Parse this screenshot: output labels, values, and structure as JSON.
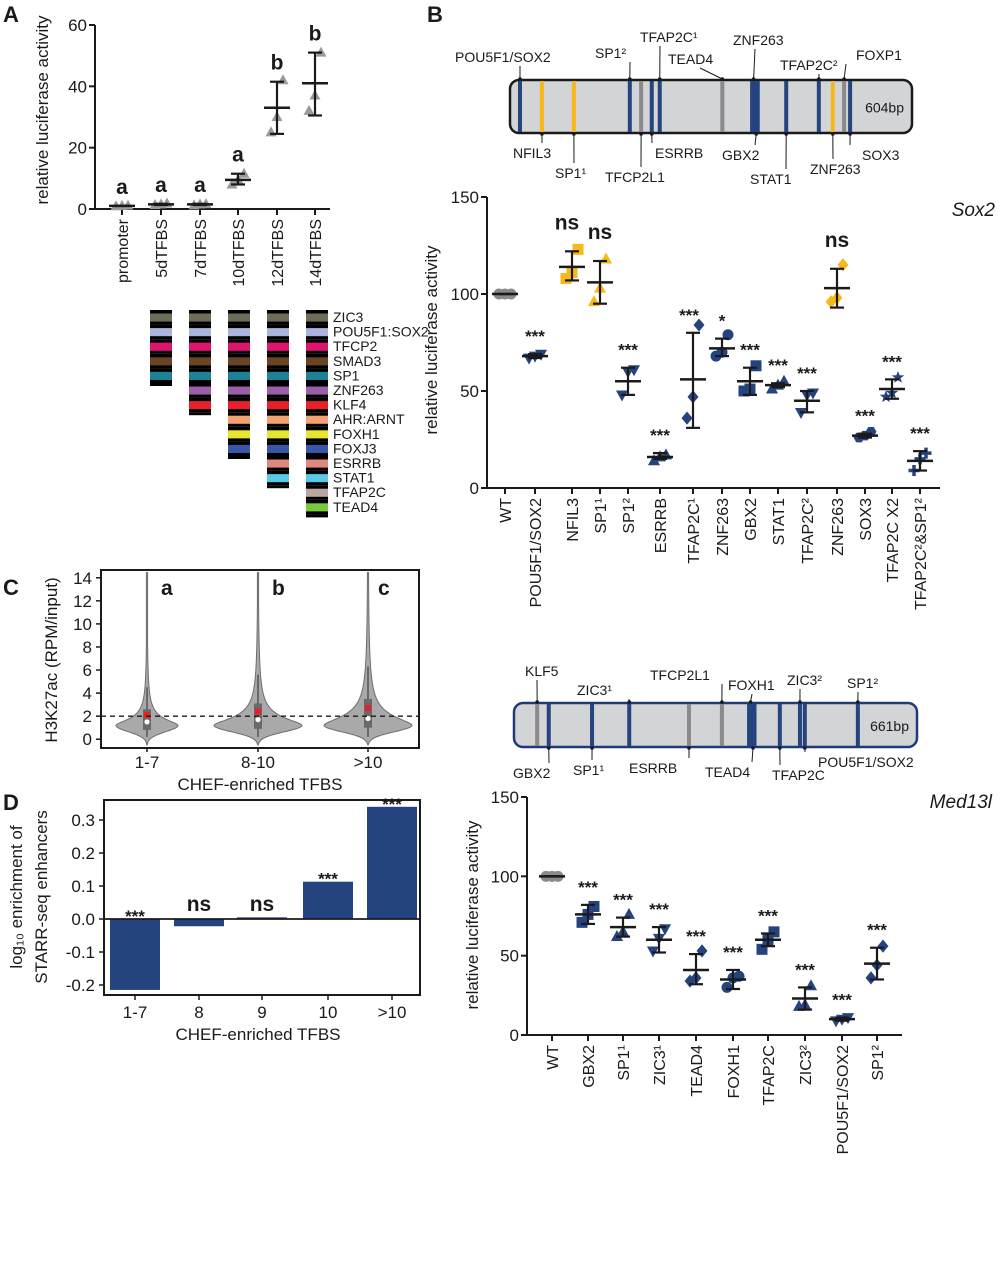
{
  "panel_labels": {
    "a": "A",
    "b": "B",
    "c": "C",
    "d": "D"
  },
  "colors": {
    "navy": "#25447f",
    "gold": "#f7b81b",
    "gray": "#8a8a8a",
    "dark": "#1a1a1a",
    "red": "#e8202a",
    "violin": "#a9a9a9"
  },
  "diagrams": {
    "sox2_map": {
      "length_label": "604bp",
      "sites": [
        {
          "label": "POU5F1/SOX2",
          "bp": 15,
          "color": "navy",
          "side": "top"
        },
        {
          "label": "NFIL3",
          "bp": 48,
          "color": "gold",
          "side": "bottom"
        },
        {
          "label": "SP1¹",
          "bp": 96,
          "color": "gold",
          "side": "bottom"
        },
        {
          "label": "SP1²",
          "bp": 180,
          "color": "navy",
          "side": "top"
        },
        {
          "label": "TFCP2L1",
          "bp": 197,
          "color": "gray",
          "side": "bottom"
        },
        {
          "label": "ESRRB",
          "bp": 213,
          "color": "navy",
          "side": "bottom"
        },
        {
          "label": "TFAP2C¹",
          "bp": 225,
          "color": "navy",
          "side": "top"
        },
        {
          "label": "TEAD4",
          "bp": 319,
          "color": "gray",
          "side": "top"
        },
        {
          "label": "ZNF263",
          "bp": 366,
          "color": "navy",
          "side": "top"
        },
        {
          "label": "GBX2",
          "bp": 370,
          "color": "navy",
          "side": "bottom"
        },
        {
          "label": "STAT1",
          "bp": 415,
          "color": "navy",
          "side": "bottom"
        },
        {
          "label": "TFAP2C²",
          "bp": 464,
          "color": "navy",
          "side": "top"
        },
        {
          "label": "ZNF263",
          "bp": 485,
          "color": "gold",
          "side": "bottom"
        },
        {
          "label": "FOXP1",
          "bp": 502,
          "color": "gray",
          "side": "top"
        },
        {
          "label": "SOX3",
          "bp": 511,
          "color": "navy",
          "side": "bottom"
        }
      ]
    },
    "med13l_map": {
      "length_label": "661bp",
      "sites": [
        {
          "label": "KLF5",
          "bp": 38,
          "color": "gray",
          "side": "top"
        },
        {
          "label": "GBX2",
          "bp": 57,
          "color": "navy",
          "side": "bottom"
        },
        {
          "label": "SP1¹",
          "bp": 128,
          "color": "navy",
          "side": "bottom"
        },
        {
          "label": "ZIC3¹",
          "bp": 189,
          "color": "navy",
          "side": "top"
        },
        {
          "label": "ESRRB",
          "bp": 287,
          "color": "gray",
          "side": "bottom"
        },
        {
          "label": "TFCP2L1",
          "bp": 341,
          "color": "gray",
          "side": "top"
        },
        {
          "label": "FOXH1",
          "bp": 388,
          "color": "navy",
          "side": "top"
        },
        {
          "label": "TEAD4",
          "bp": 392,
          "color": "navy",
          "side": "bottom"
        },
        {
          "label": "TFAP2C",
          "bp": 436,
          "color": "navy",
          "side": "bottom"
        },
        {
          "label": "ZIC3²",
          "bp": 469,
          "color": "navy",
          "side": "top"
        },
        {
          "label": "POU5F1/SOX2",
          "bp": 477,
          "color": "navy",
          "side": "bottom"
        },
        {
          "label": "SP1²",
          "bp": 564,
          "color": "navy",
          "side": "top"
        }
      ]
    }
  },
  "tfbs_legend": {
    "factors": [
      {
        "label": "ZIC3",
        "color": "#6e6e58"
      },
      {
        "label": "POU5F1:SOX2",
        "color": "#aab4dc"
      },
      {
        "label": "TFCP2",
        "color": "#e0146e"
      },
      {
        "label": "SMAD3",
        "color": "#6b4423"
      },
      {
        "label": "SP1",
        "color": "#1e8296"
      },
      {
        "label": "ZNF263",
        "color": "#9b5ea8"
      },
      {
        "label": "KLF4",
        "color": "#e8202a"
      },
      {
        "label": "AHR:ARNT",
        "color": "#f5a070"
      },
      {
        "label": "FOXH1",
        "color": "#e6e632"
      },
      {
        "label": "FOXJ3",
        "color": "#3a56a8"
      },
      {
        "label": "ESRRB",
        "color": "#e08880"
      },
      {
        "label": "STAT1",
        "color": "#5ac8e8"
      },
      {
        "label": "TFAP2C",
        "color": "#b8a8a0"
      },
      {
        "label": "TEAD4",
        "color": "#78c83c"
      }
    ],
    "counts_per_construct": [
      5,
      7,
      10,
      12,
      14
    ]
  },
  "chart_data": [
    {
      "panel": "A",
      "type": "scatter",
      "ylabel": "relative luciferase activity",
      "ylim": [
        0,
        60
      ],
      "yticks": [
        "0",
        "20",
        "40",
        "60"
      ],
      "categories": [
        "promoter",
        "5dTFBS",
        "7dTFBS",
        "10dTFBS",
        "12dTFBS",
        "14dTFBS"
      ],
      "means": [
        1,
        1.5,
        1.5,
        9.5,
        33,
        41
      ],
      "err_low": [
        1,
        1.3,
        1.3,
        8,
        24.5,
        30.5
      ],
      "err_high": [
        1,
        1.7,
        1.7,
        11.5,
        41.5,
        51
      ],
      "points": [
        [
          0.9,
          1,
          1.1
        ],
        [
          1.3,
          1.5,
          1.8
        ],
        [
          1.2,
          1.5,
          1.6
        ],
        [
          8,
          9.5,
          11.5
        ],
        [
          25,
          30,
          42
        ],
        [
          32,
          37,
          51
        ]
      ],
      "letters": [
        "a",
        "a",
        "a",
        "a",
        "b",
        "b"
      ],
      "marker": "triangle",
      "marker_color": "#9a9a9a"
    },
    {
      "panel": "B-Sox2",
      "type": "scatter",
      "title": "Sox2",
      "ylabel": "relative luciferase activity",
      "ylim": [
        0,
        150
      ],
      "yticks": [
        "0",
        "50",
        "100",
        "150"
      ],
      "categories": [
        "WT",
        "POU5F1/SOX2",
        "NFIL3",
        "SP1¹",
        "SP1²",
        "ESRRB",
        "TFAP2C¹",
        "ZNF263",
        "GBX2",
        "STAT1",
        "TFAP2C²",
        "ZNF263",
        "SOX3",
        "TFAP2C X2",
        "TFAP2C²&SP1²"
      ],
      "means": [
        100,
        68,
        114,
        106,
        55,
        16,
        56,
        72,
        55,
        53,
        45,
        103,
        27,
        51,
        14
      ],
      "err_low": [
        100,
        67,
        107,
        95,
        48,
        15,
        31,
        68,
        48,
        52,
        39,
        93,
        26,
        46,
        9
      ],
      "err_high": [
        100,
        69,
        122,
        117,
        62,
        18,
        80,
        77,
        62,
        54,
        50,
        113,
        28,
        56,
        19
      ],
      "points": [
        [
          100,
          100,
          100
        ],
        [
          67,
          68,
          69
        ],
        [
          108,
          111,
          123
        ],
        [
          96,
          103,
          118
        ],
        [
          48,
          60,
          61
        ],
        [
          14,
          16,
          17
        ],
        [
          36,
          47,
          84
        ],
        [
          68,
          70,
          79
        ],
        [
          50,
          51,
          63
        ],
        [
          51,
          53,
          55
        ],
        [
          39,
          48,
          49
        ],
        [
          96,
          98,
          115
        ],
        [
          26,
          27,
          29
        ],
        [
          47,
          49,
          57
        ],
        [
          9,
          15,
          18
        ]
      ],
      "markers": [
        "circle",
        "tri-down",
        "square",
        "triangle",
        "tri-down",
        "triangle",
        "diamond",
        "circle",
        "square",
        "triangle",
        "tri-down",
        "diamond",
        "hexagon",
        "star",
        "cross"
      ],
      "marker_colors": [
        "gray",
        "navy",
        "gold",
        "gold",
        "navy",
        "navy",
        "navy",
        "navy",
        "navy",
        "navy",
        "navy",
        "gold",
        "navy",
        "navy",
        "navy"
      ],
      "significance": [
        "",
        "***",
        "ns",
        "ns",
        "***",
        "***",
        "***",
        "*",
        "***",
        "***",
        "***",
        "ns",
        "***",
        "***",
        "***"
      ]
    },
    {
      "panel": "B-Med13l",
      "type": "scatter",
      "title": "Med13l",
      "ylabel": "relative luciferase activity",
      "ylim": [
        0,
        150
      ],
      "yticks": [
        "0",
        "50",
        "100",
        "150"
      ],
      "categories": [
        "WT",
        "GBX2",
        "SP1¹",
        "ZIC3¹",
        "TEAD4",
        "FOXH1",
        "TFAP2C",
        "ZIC3²",
        "POU5F1/SOX2",
        "SP1²"
      ],
      "means": [
        100,
        76,
        68,
        60,
        41,
        35,
        60,
        23,
        10,
        45
      ],
      "err_low": [
        100,
        70,
        62,
        52,
        32,
        29,
        56,
        16,
        9,
        35
      ],
      "err_high": [
        100,
        82,
        74,
        68,
        51,
        41,
        64,
        30,
        11,
        55
      ],
      "points": [
        [
          100,
          100,
          100
        ],
        [
          71,
          76,
          81
        ],
        [
          62,
          65,
          76
        ],
        [
          53,
          61,
          67
        ],
        [
          34,
          36,
          53
        ],
        [
          30,
          36,
          37
        ],
        [
          54,
          60,
          65
        ],
        [
          18,
          19,
          31
        ],
        [
          9,
          10,
          11
        ],
        [
          36,
          44,
          56
        ]
      ],
      "markers": [
        "circle",
        "square",
        "triangle",
        "tri-down",
        "diamond",
        "circle",
        "square",
        "triangle",
        "tri-down",
        "diamond"
      ],
      "marker_colors": [
        "gray",
        "navy",
        "navy",
        "navy",
        "navy",
        "navy",
        "navy",
        "navy",
        "navy",
        "navy"
      ],
      "significance": [
        "",
        "***",
        "***",
        "***",
        "***",
        "***",
        "***",
        "***",
        "***",
        "***"
      ]
    },
    {
      "panel": "C",
      "type": "violin",
      "ylabel": "H3K27ac (RPM/input)",
      "xlabel": "CHEF-enriched TFBS",
      "ylim": [
        -0.5,
        14.5
      ],
      "yticks": [
        "0",
        "2",
        "4",
        "6",
        "8",
        "10",
        "12",
        "14"
      ],
      "categories": [
        "1-7",
        "8-10",
        ">10"
      ],
      "medians": [
        1.5,
        1.7,
        1.8
      ],
      "means": [
        2.1,
        2.4,
        2.7
      ],
      "q1": [
        0.8,
        0.9,
        1.0
      ],
      "q3": [
        2.6,
        3.1,
        3.5
      ],
      "whisker_high": [
        4.5,
        5.6,
        6.3
      ],
      "reference_line": 2,
      "letters": [
        "a",
        "b",
        "c"
      ]
    },
    {
      "panel": "D",
      "type": "bar",
      "ylabel_line1": "log₁₀ enrichment of",
      "ylabel_line2": "STARR-seq enhancers",
      "xlabel": "CHEF-enriched TFBS",
      "ylim": [
        -0.24,
        0.36
      ],
      "yticks": [
        "-0.2",
        "-0.1",
        "0.0",
        "0.1",
        "0.2",
        "0.3"
      ],
      "categories": [
        "1-7",
        "8",
        "9",
        "10",
        ">10"
      ],
      "values": [
        -0.215,
        -0.022,
        0.005,
        0.113,
        0.34
      ],
      "significance": [
        "***",
        "ns",
        "ns",
        "***",
        "***"
      ],
      "bar_color": "#25447f"
    }
  ]
}
